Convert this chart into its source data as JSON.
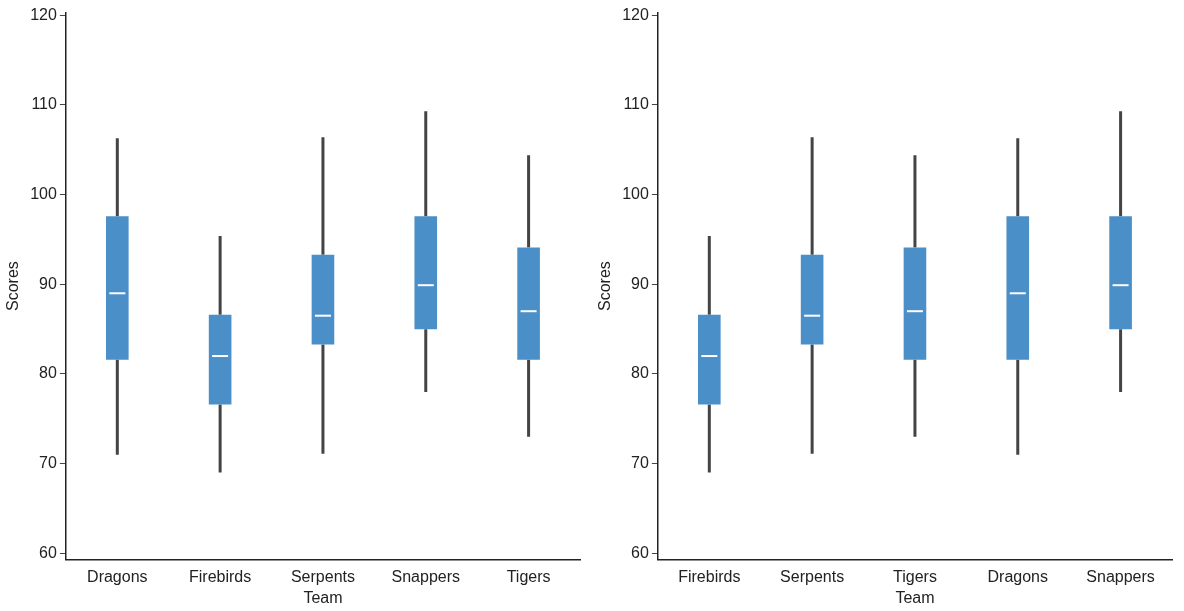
{
  "chart_data": [
    {
      "type": "box",
      "xlabel": "Team",
      "ylabel": "Scores",
      "categories": [
        "Dragons",
        "Firebirds",
        "Serpents",
        "Snappers",
        "Tigers"
      ],
      "color": "#4a8fc7",
      "ylim": [
        59.3,
        120.3
      ],
      "yticks": [
        60,
        70,
        80,
        90,
        100,
        110,
        120
      ],
      "grid": false,
      "boxes": [
        {
          "low": 71.0,
          "q1": 81.6,
          "median": 89.0,
          "q3": 97.6,
          "high": 106.3
        },
        {
          "low": 69.0,
          "q1": 76.6,
          "median": 82.0,
          "q3": 86.6,
          "high": 95.4
        },
        {
          "low": 71.1,
          "q1": 83.3,
          "median": 86.5,
          "q3": 93.3,
          "high": 106.4
        },
        {
          "low": 78.0,
          "q1": 85.0,
          "median": 89.9,
          "q3": 97.6,
          "high": 109.3
        },
        {
          "low": 73.0,
          "q1": 81.6,
          "median": 87.0,
          "q3": 94.1,
          "high": 104.4
        }
      ]
    },
    {
      "type": "box",
      "xlabel": "Team",
      "ylabel": "Scores",
      "categories": [
        "Firebirds",
        "Serpents",
        "Tigers",
        "Dragons",
        "Snappers"
      ],
      "color": "#4a8fc7",
      "ylim": [
        59.3,
        120.3
      ],
      "yticks": [
        60,
        70,
        80,
        90,
        100,
        110,
        120
      ],
      "grid": false,
      "boxes": [
        {
          "low": 69.0,
          "q1": 76.6,
          "median": 82.0,
          "q3": 86.6,
          "high": 95.4
        },
        {
          "low": 71.1,
          "q1": 83.3,
          "median": 86.5,
          "q3": 93.3,
          "high": 106.4
        },
        {
          "low": 73.0,
          "q1": 81.6,
          "median": 87.0,
          "q3": 94.1,
          "high": 104.4
        },
        {
          "low": 71.0,
          "q1": 81.6,
          "median": 89.0,
          "q3": 97.6,
          "high": 106.3
        },
        {
          "low": 78.0,
          "q1": 85.0,
          "median": 89.9,
          "q3": 97.6,
          "high": 109.3
        }
      ]
    }
  ]
}
